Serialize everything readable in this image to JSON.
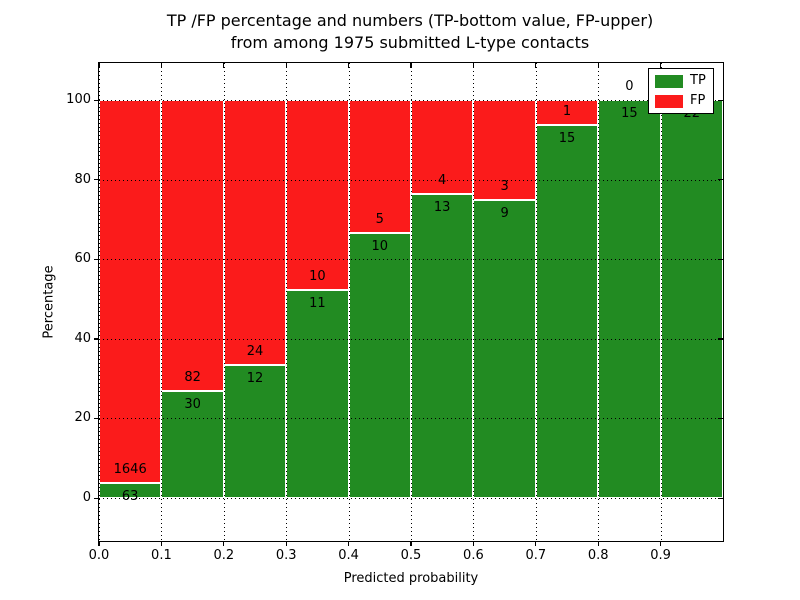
{
  "title": {
    "line1": "TP /FP percentage and numbers (TP-bottom value, FP-upper)",
    "line2": "from among 1975 submitted L-type contacts"
  },
  "chart_data": {
    "type": "bar",
    "stacked": true,
    "normalized": "percent",
    "title": "TP /FP percentage and numbers (TP-bottom value, FP-upper)\nfrom among 1975 submitted L-type contacts",
    "xlabel": "Predicted probability",
    "ylabel": "Percentage",
    "total_submitted": 1975,
    "categories": [
      "0.0",
      "0.1",
      "0.2",
      "0.3",
      "0.4",
      "0.5",
      "0.6",
      "0.7",
      "0.8",
      "0.9"
    ],
    "bin_width": 0.1,
    "series": [
      {
        "name": "TP",
        "color": "#228b22",
        "values": [
          63,
          30,
          12,
          11,
          10,
          13,
          9,
          15,
          15,
          22
        ]
      },
      {
        "name": "FP",
        "color": "#fb1b1b",
        "values": [
          1646,
          82,
          24,
          10,
          5,
          4,
          3,
          1,
          0,
          0
        ]
      }
    ],
    "tp_percent": [
      3.69,
      26.79,
      33.33,
      52.38,
      66.67,
      76.47,
      75.0,
      93.75,
      100.0,
      100.0
    ],
    "xticks": [
      "0.0",
      "0.1",
      "0.2",
      "0.3",
      "0.4",
      "0.5",
      "0.6",
      "0.7",
      "0.8",
      "0.9"
    ],
    "yticks": [
      0,
      20,
      40,
      60,
      80,
      100
    ],
    "xlim": [
      0.0,
      1.0
    ],
    "ylim": [
      -10.8,
      109.3
    ],
    "grid": true,
    "grid_style": "dotted",
    "bar_edge_color": "#ffffff",
    "legend": {
      "position": "upper right",
      "entries": [
        {
          "label": "TP",
          "color": "#228b22"
        },
        {
          "label": "FP",
          "color": "#fb1b1b"
        }
      ]
    }
  }
}
